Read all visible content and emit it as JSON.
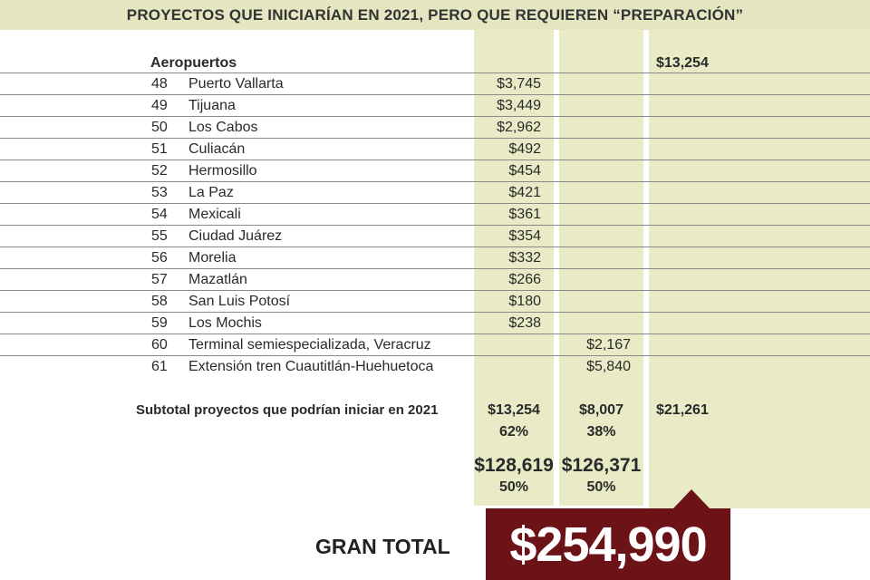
{
  "title": "PROYECTOS QUE INICIARÍAN EN 2021, PERO QUE REQUIEREN “PREPARACIÓN”",
  "section": {
    "label": "Aeropuertos",
    "total": "$13,254"
  },
  "rows": [
    {
      "n": "48",
      "name": "Puerto Vallarta",
      "c1": "$3,745",
      "c2": ""
    },
    {
      "n": "49",
      "name": "Tijuana",
      "c1": "$3,449",
      "c2": ""
    },
    {
      "n": "50",
      "name": "Los Cabos",
      "c1": "$2,962",
      "c2": ""
    },
    {
      "n": "51",
      "name": "Culiacán",
      "c1": "$492",
      "c2": ""
    },
    {
      "n": "52",
      "name": "Hermosillo",
      "c1": "$454",
      "c2": ""
    },
    {
      "n": "53",
      "name": "La Paz",
      "c1": "$421",
      "c2": ""
    },
    {
      "n": "54",
      "name": "Mexicali",
      "c1": "$361",
      "c2": ""
    },
    {
      "n": "55",
      "name": "Ciudad Juárez",
      "c1": "$354",
      "c2": ""
    },
    {
      "n": "56",
      "name": "Morelia",
      "c1": "$332",
      "c2": ""
    },
    {
      "n": "57",
      "name": "Mazatlán",
      "c1": "$266",
      "c2": ""
    },
    {
      "n": "58",
      "name": "San Luis Potosí",
      "c1": "$180",
      "c2": ""
    },
    {
      "n": "59",
      "name": "Los Mochis",
      "c1": "$238",
      "c2": ""
    },
    {
      "n": "60",
      "name": "Terminal semiespecializada, Veracruz",
      "c1": "",
      "c2": "$2,167"
    },
    {
      "n": "61",
      "name": "Extensión tren Cuautitlán-Huehuetoca",
      "c1": "",
      "c2": "$5,840"
    }
  ],
  "subtotal": {
    "label": "Subtotal proyectos que podrían iniciar en 2021",
    "c1": "$13,254",
    "c1_pct": "62%",
    "c2": "$8,007",
    "c2_pct": "38%",
    "c3": "$21,261"
  },
  "totals": {
    "c1": "$128,619",
    "c1_pct": "50%",
    "c2": "$126,371",
    "c2_pct": "50%"
  },
  "grand_total": {
    "label": "GRAN TOTAL",
    "value": "$254,990"
  },
  "colors": {
    "banner": "#e3e6c0",
    "column": "#e8ebc6",
    "accent": "#6b1316"
  }
}
